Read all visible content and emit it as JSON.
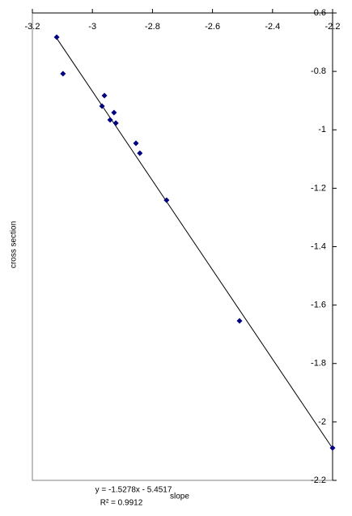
{
  "chart_data": {
    "type": "scatter",
    "y_label": "cross section",
    "x": [
      -3.119,
      -3.098,
      -2.96,
      -2.968,
      -2.928,
      -2.941,
      -2.922,
      -2.855,
      -2.842,
      -2.753,
      -2.51,
      -2.2
    ],
    "series": [
      {
        "color": "#000080",
        "values": [
          -0.683,
          -0.808,
          -0.883,
          -0.919,
          -0.941,
          -0.966,
          -0.977,
          -1.046,
          -1.08,
          -1.241,
          -1.654,
          -2.089
        ]
      }
    ],
    "xlim": [
      -3.2,
      -2.2
    ],
    "xticks": [
      -3.2,
      -3,
      -2.8,
      -2.6,
      -2.4,
      -2.2
    ],
    "ylim": [
      -0.6,
      -2.2
    ],
    "yticks": [
      -0.6,
      -0.8,
      -1,
      -1.2,
      -1.4,
      -1.6,
      -1.8,
      -2,
      -2.2
    ],
    "trendline": {
      "slope": -1.5278,
      "intercept": -5.4517,
      "color": "#000000"
    },
    "equation": "y = -1.5278x - 5.4517",
    "equation_note": "slope",
    "r_squared": "R² = 0.9912"
  }
}
